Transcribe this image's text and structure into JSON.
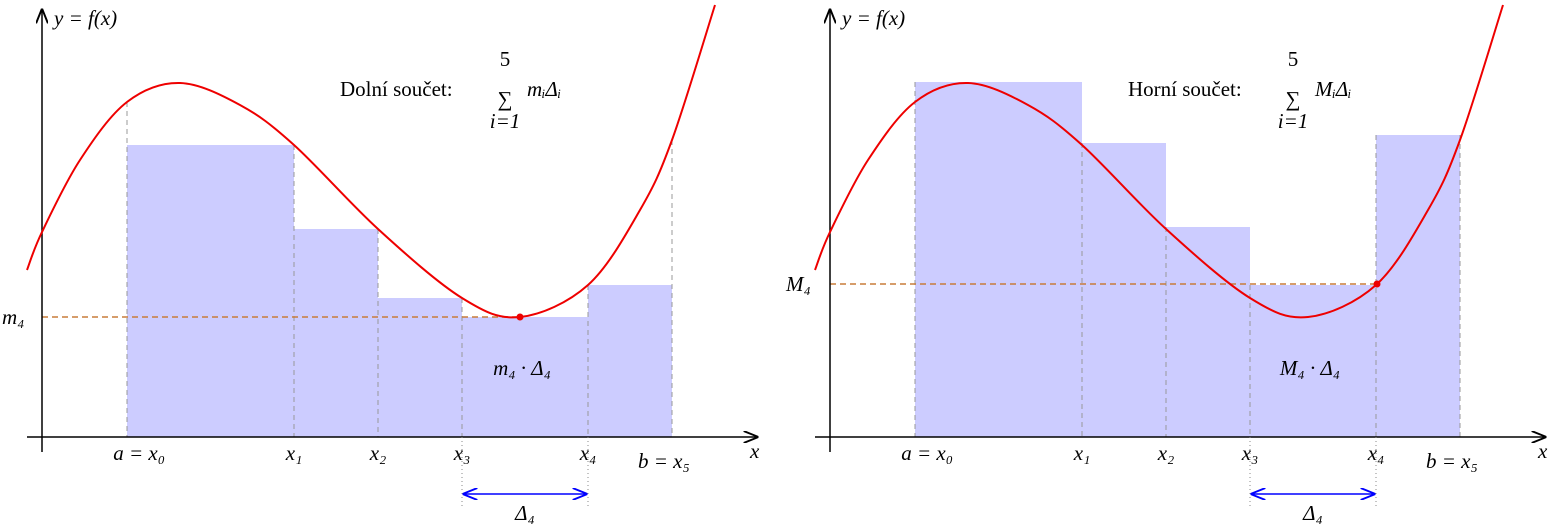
{
  "panels": [
    {
      "axis_y_label": "y = f(x)",
      "axis_x_label": "x",
      "sum_label": "Dolní součet:",
      "sum_upper": "5",
      "sum_lower": "i=1",
      "sum_term": "mᵢΔᵢ",
      "level_label": "m₄",
      "area_label": "m₄ · Δ₄",
      "delta_label": "Δ₄",
      "ticks": [
        "a = x₀",
        "x₁",
        "x₂",
        "x₃",
        "x₄",
        "b = x₅"
      ]
    },
    {
      "axis_y_label": "y = f(x)",
      "axis_x_label": "x",
      "sum_label": "Horní součet:",
      "sum_upper": "5",
      "sum_lower": "i=1",
      "sum_term": "MᵢΔᵢ",
      "level_label": "M₄",
      "area_label": "M₄ · Δ₄",
      "delta_label": "Δ₄",
      "ticks": [
        "a = x₀",
        "x₁",
        "x₂",
        "x₃",
        "x₄",
        "b = x₅"
      ]
    }
  ]
}
